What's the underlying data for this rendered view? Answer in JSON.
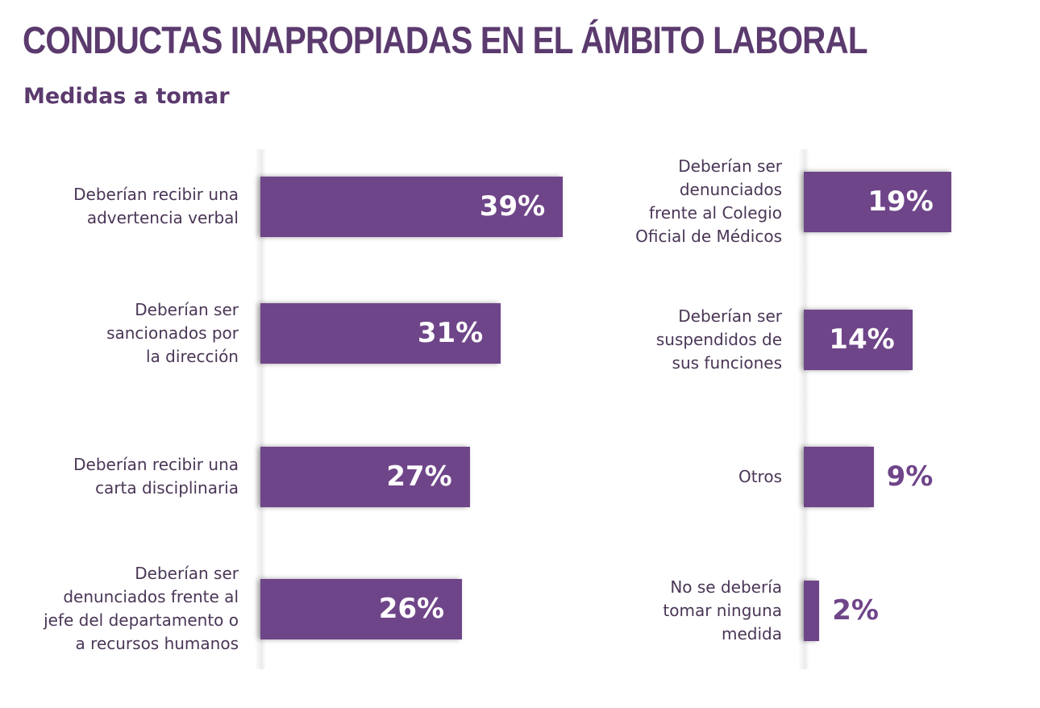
{
  "title": "CONDUCTAS INAPROPIADAS EN EL ÁMBITO LABORAL",
  "subtitle": "Medidas a tomar",
  "colors": {
    "bar": "#6f4589",
    "title": "#5b3a6e"
  },
  "chart_data": {
    "type": "bar",
    "orientation": "horizontal",
    "unit": "%",
    "categories": [
      "Deberían recibir una advertencia verbal",
      "Deberían ser sancionados por la dirección",
      "Deberían recibir una carta disciplinaria",
      "Deberían ser denunciados frente al jefe del departamento o a recursos humanos",
      "Deberían ser denunciados frente al Colegio Oficial de Médicos",
      "Deberían ser suspendidos de sus funciones",
      "Otros",
      "No se debería tomar ninguna medida"
    ],
    "values": [
      39,
      31,
      27,
      26,
      19,
      14,
      9,
      2
    ],
    "labels": [
      "39%",
      "31%",
      "27%",
      "26%",
      "19%",
      "14%",
      "9%",
      "2%"
    ]
  }
}
